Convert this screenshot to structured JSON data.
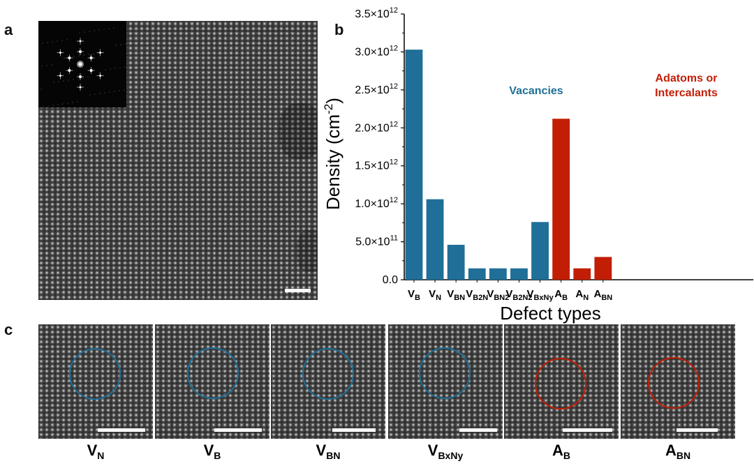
{
  "panels": {
    "a": "a",
    "b": "b",
    "c": "c"
  },
  "colors": {
    "vacancy": "#1f6f98",
    "adatom": "#c21e06",
    "scale_bar": "#ffffff",
    "axis": "#000000"
  },
  "chart_data": {
    "type": "bar",
    "title": "",
    "xlabel": "Defect types",
    "ylabel": "Density (cm-2)",
    "ylim": [
      0,
      3500000000000.0
    ],
    "yticks": [
      {
        "value": 0,
        "label": "0.0"
      },
      {
        "value": 500000000000.0,
        "mant": "5.0",
        "exp": "11"
      },
      {
        "value": 1000000000000.0,
        "mant": "1.0",
        "exp": "12"
      },
      {
        "value": 1500000000000.0,
        "mant": "1.5",
        "exp": "12"
      },
      {
        "value": 2000000000000.0,
        "mant": "2.0",
        "exp": "12"
      },
      {
        "value": 2500000000000.0,
        "mant": "2.5",
        "exp": "12"
      },
      {
        "value": 3000000000000.0,
        "mant": "3.0",
        "exp": "12"
      },
      {
        "value": 3500000000000.0,
        "mant": "3.5",
        "exp": "12"
      }
    ],
    "categories": [
      {
        "base": "V",
        "sub": "B"
      },
      {
        "base": "V",
        "sub": "N"
      },
      {
        "base": "V",
        "sub": "BN"
      },
      {
        "base": "V",
        "sub": "B2N"
      },
      {
        "base": "V",
        "sub": "BN2"
      },
      {
        "base": "V",
        "sub": "B2N2"
      },
      {
        "base": "V",
        "sub": "BxNy"
      },
      {
        "base": "A",
        "sub": "B"
      },
      {
        "base": "A",
        "sub": "N"
      },
      {
        "base": "A",
        "sub": "BN"
      }
    ],
    "values": [
      3030000000000.0,
      1060000000000.0,
      460000000000.0,
      150000000000.0,
      150000000000.0,
      150000000000.0,
      760000000000.0,
      2120000000000.0,
      150000000000.0,
      300000000000.0
    ],
    "groups": [
      "vacancy",
      "vacancy",
      "vacancy",
      "vacancy",
      "vacancy",
      "vacancy",
      "vacancy",
      "adatom",
      "adatom",
      "adatom"
    ],
    "annotations": [
      {
        "lines": [
          "Vacancies"
        ],
        "group": "vacancy"
      },
      {
        "lines": [
          "Adatoms or",
          "Intercalants"
        ],
        "group": "adatom"
      }
    ]
  },
  "tiles": [
    {
      "base": "V",
      "sub": "N",
      "circle": "vacancy"
    },
    {
      "base": "V",
      "sub": "B",
      "circle": "vacancy"
    },
    {
      "base": "V",
      "sub": "BN",
      "circle": "vacancy"
    },
    {
      "base": "V",
      "sub": "BxNy",
      "circle": "vacancy"
    },
    {
      "base": "A",
      "sub": "B",
      "circle": "adatom"
    },
    {
      "base": "A",
      "sub": "BN",
      "circle": "adatom"
    }
  ]
}
